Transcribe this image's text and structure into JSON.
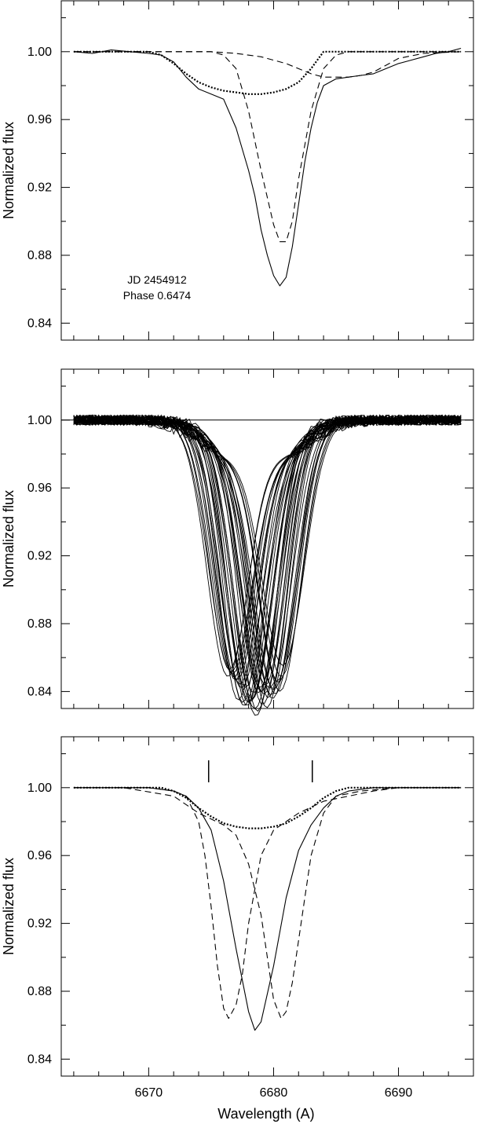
{
  "figure": {
    "xlabel": "Wavelength (A)"
  },
  "chart_data": [
    {
      "type": "line",
      "title": "",
      "xlabel": "",
      "ylabel": "Normalized flux",
      "xlim": [
        6663,
        6696
      ],
      "ylim": [
        0.83,
        1.03
      ],
      "xticks_major": [
        6670,
        6680,
        6690
      ],
      "yticks": [
        0.84,
        0.88,
        0.92,
        0.96,
        1.0
      ],
      "ytick_labels": [
        "0.84",
        "0.88",
        "0.92",
        "0.96",
        "1.00"
      ],
      "annotations": [
        "JD 2454912",
        "Phase 0.6474"
      ],
      "series": [
        {
          "style": "solid",
          "x": [
            6664,
            6665.5,
            6667,
            6668.5,
            6670,
            6671,
            6672,
            6673,
            6674,
            6675,
            6676,
            6677,
            6678,
            6678.5,
            6679,
            6679.5,
            6680,
            6680.5,
            6681,
            6681.5,
            6682,
            6682.5,
            6683,
            6683.5,
            6684,
            6685,
            6686,
            6687,
            6688,
            6689,
            6690,
            6691,
            6692,
            6693,
            6694,
            6695
          ],
          "y": [
            1.0,
            0.999,
            1.001,
            1.0,
            0.999,
            0.998,
            0.994,
            0.985,
            0.978,
            0.975,
            0.972,
            0.955,
            0.93,
            0.915,
            0.895,
            0.88,
            0.868,
            0.862,
            0.867,
            0.885,
            0.91,
            0.935,
            0.955,
            0.97,
            0.98,
            0.984,
            0.985,
            0.986,
            0.987,
            0.99,
            0.993,
            0.995,
            0.997,
            0.999,
            1.0,
            1.002
          ]
        },
        {
          "style": "dashed",
          "x": [
            6664,
            6670,
            6675,
            6676,
            6677,
            6678,
            6679,
            6680,
            6680.5,
            6681,
            6681.5,
            6682,
            6683,
            6684,
            6685,
            6686,
            6690,
            6695
          ],
          "y": [
            1.0,
            1.0,
            1.0,
            0.998,
            0.99,
            0.965,
            0.93,
            0.898,
            0.888,
            0.888,
            0.9,
            0.925,
            0.965,
            0.99,
            0.998,
            1.0,
            1.0,
            1.0
          ]
        },
        {
          "style": "dashed",
          "x": [
            6664,
            6670,
            6675,
            6677,
            6679,
            6681,
            6682,
            6683,
            6684,
            6685,
            6686,
            6687,
            6688,
            6689,
            6690,
            6692,
            6695
          ],
          "y": [
            1.0,
            1.0,
            1.0,
            0.999,
            0.997,
            0.993,
            0.99,
            0.987,
            0.985,
            0.985,
            0.985,
            0.986,
            0.988,
            0.992,
            0.996,
            0.999,
            1.0
          ]
        },
        {
          "style": "dotted",
          "x": [
            6664,
            6670,
            6671,
            6672,
            6673,
            6674,
            6675,
            6676,
            6677,
            6678,
            6679,
            6680,
            6681,
            6682,
            6683,
            6683.5,
            6684,
            6686,
            6690,
            6695
          ],
          "y": [
            1.0,
            1.0,
            0.998,
            0.993,
            0.987,
            0.982,
            0.979,
            0.977,
            0.976,
            0.975,
            0.975,
            0.976,
            0.978,
            0.982,
            0.99,
            0.995,
            1.0,
            1.0,
            1.0,
            1.0
          ]
        }
      ]
    },
    {
      "type": "line",
      "title": "",
      "xlabel": "",
      "ylabel": "Normalized flux",
      "xlim": [
        6663,
        6696
      ],
      "ylim": [
        0.83,
        1.03
      ],
      "xticks_major": [
        6670,
        6680,
        6690
      ],
      "yticks": [
        0.84,
        0.88,
        0.92,
        0.96,
        1.0
      ],
      "ytick_labels": [
        "0.84",
        "0.88",
        "0.92",
        "0.96",
        "1.00"
      ],
      "reference_line_y": 1.0,
      "family": {
        "description_count": 40,
        "center_range": [
          6676.3,
          6680.8
        ],
        "depth_range": [
          0.845,
          0.862
        ],
        "width_A": 1.6
      }
    },
    {
      "type": "line",
      "title": "",
      "xlabel": "Wavelength (A)",
      "ylabel": "Normalized flux",
      "xlim": [
        6663,
        6696
      ],
      "ylim": [
        0.83,
        1.03
      ],
      "xticks_major": [
        6670,
        6680,
        6690
      ],
      "xtick_labels": [
        "6670",
        "6680",
        "6690"
      ],
      "yticks": [
        0.84,
        0.88,
        0.92,
        0.96,
        1.0
      ],
      "ytick_labels": [
        "0.84",
        "0.88",
        "0.92",
        "0.96",
        "1.00"
      ],
      "markers_x": [
        6674.8,
        6683.1
      ],
      "series": [
        {
          "style": "solid",
          "x": [
            6664,
            6670,
            6672,
            6673,
            6674,
            6675,
            6676,
            6677,
            6678,
            6678.5,
            6679,
            6680,
            6681,
            6682,
            6683,
            6684,
            6685,
            6686,
            6688,
            6690,
            6695
          ],
          "y": [
            1.0,
            1.0,
            0.998,
            0.995,
            0.988,
            0.975,
            0.945,
            0.905,
            0.868,
            0.857,
            0.862,
            0.895,
            0.935,
            0.963,
            0.978,
            0.988,
            0.995,
            0.998,
            1.0,
            1.0,
            1.0
          ]
        },
        {
          "style": "dashed",
          "x": [
            6664,
            6670,
            6672,
            6673,
            6674,
            6674.5,
            6675,
            6675.5,
            6676,
            6676.4,
            6677,
            6677.5,
            6678,
            6679,
            6680,
            6682,
            6684,
            6686,
            6688,
            6690,
            6695
          ],
          "y": [
            1.0,
            1.0,
            0.998,
            0.995,
            0.98,
            0.96,
            0.93,
            0.895,
            0.87,
            0.864,
            0.872,
            0.89,
            0.92,
            0.96,
            0.975,
            0.985,
            0.992,
            0.995,
            0.998,
            1.0,
            1.0
          ]
        },
        {
          "style": "dashed",
          "x": [
            6664,
            6668,
            6672,
            6674,
            6676,
            6677,
            6678,
            6679,
            6679.5,
            6680,
            6680.6,
            6681,
            6681.5,
            6682,
            6682.5,
            6683,
            6684,
            6685,
            6687,
            6690,
            6695
          ],
          "y": [
            1.0,
            1.0,
            0.995,
            0.985,
            0.978,
            0.972,
            0.955,
            0.925,
            0.9,
            0.875,
            0.864,
            0.868,
            0.885,
            0.91,
            0.935,
            0.96,
            0.985,
            0.995,
            0.998,
            1.0,
            1.0
          ]
        },
        {
          "style": "dotted",
          "x": [
            6664,
            6671,
            6672,
            6673,
            6674,
            6675,
            6676,
            6677,
            6678,
            6679,
            6680,
            6681,
            6682,
            6683,
            6684,
            6685,
            6686,
            6690,
            6695
          ],
          "y": [
            1.0,
            1.0,
            0.998,
            0.994,
            0.988,
            0.983,
            0.979,
            0.977,
            0.976,
            0.976,
            0.977,
            0.979,
            0.983,
            0.988,
            0.994,
            0.998,
            1.0,
            1.0,
            1.0
          ]
        }
      ]
    }
  ]
}
